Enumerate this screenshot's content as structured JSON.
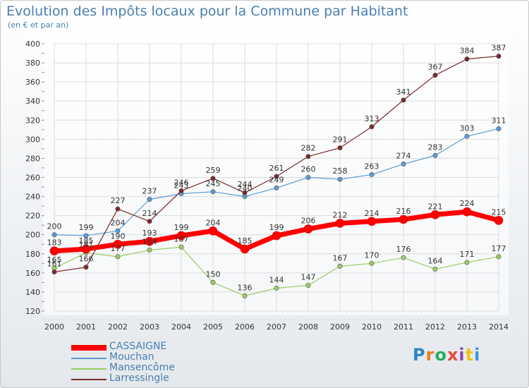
{
  "title": "Evolution des Impôts locaux pour la Commune par Habitant",
  "subtitle": "(en € et par an)",
  "brand": "Proxiti",
  "chart_data": {
    "type": "line",
    "title": "Evolution des Impôts locaux pour la Commune par Habitant",
    "subtitle": "(en € et par an)",
    "x": [
      2000,
      2001,
      2002,
      2003,
      2004,
      2005,
      2006,
      2007,
      2008,
      2009,
      2010,
      2011,
      2012,
      2013,
      2014
    ],
    "ylim": [
      120,
      400
    ],
    "yticks": [
      120,
      140,
      160,
      180,
      200,
      220,
      240,
      260,
      280,
      300,
      320,
      340,
      360,
      380,
      400
    ],
    "grid": true,
    "legend_position": "bottom-left",
    "series": [
      {
        "name": "Mouchan",
        "color": "#5b9bd5",
        "width": 1.2,
        "values": [
          200,
          199,
          204,
          237,
          243,
          245,
          240,
          249,
          260,
          258,
          263,
          274,
          283,
          303,
          311
        ],
        "labels": [
          "200",
          "199",
          "204",
          "237",
          "243",
          "245",
          "240",
          "249",
          "260",
          "258",
          "263",
          "274",
          "283",
          "303",
          "311"
        ]
      },
      {
        "name": "Mansencôme",
        "color": "#99cc66",
        "width": 1.2,
        "values": [
          165,
          181,
          177,
          184,
          187,
          150,
          136,
          144,
          147,
          167,
          170,
          176,
          164,
          171,
          177
        ],
        "labels": [
          "165",
          "181",
          "177",
          "184",
          "187",
          "150",
          "136",
          "144",
          "147",
          "167",
          "170",
          "176",
          "164",
          "171",
          "177"
        ]
      },
      {
        "name": "Larressingle",
        "color": "#7a2a2a",
        "width": 1.2,
        "values": [
          161,
          166,
          227,
          214,
          246,
          259,
          244,
          261,
          282,
          291,
          313,
          341,
          367,
          384,
          387
        ],
        "labels": [
          "161",
          "166",
          "227",
          "214",
          "246",
          "259",
          "244",
          "261",
          "282",
          "291",
          "313",
          "341",
          "367",
          "384",
          "387"
        ]
      },
      {
        "name": "CASSAIGNE",
        "color": "#ff0000",
        "width": 7,
        "values": [
          183,
          185,
          190,
          193,
          199,
          204,
          185,
          199,
          206,
          212,
          214,
          216,
          221,
          224,
          215
        ],
        "labels": [
          "183",
          "185",
          "190",
          "193",
          "199",
          "204",
          "185",
          "199",
          "206",
          "212",
          "214",
          "216",
          "221",
          "224",
          "215"
        ]
      }
    ],
    "legend": [
      "CASSAIGNE",
      "Mouchan",
      "Mansencôme",
      "Larressingle"
    ]
  }
}
